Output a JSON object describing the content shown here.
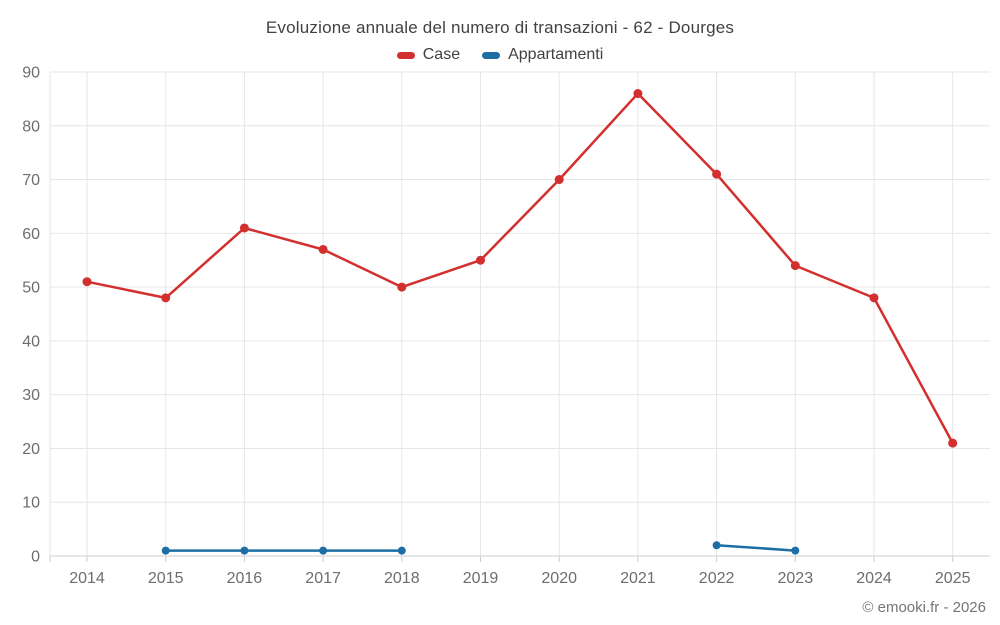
{
  "page": {
    "title": "Evoluzione annuale del numero di transazioni - 62 - Dourges",
    "copyright": "© emooki.fr - 2026"
  },
  "legend": {
    "items": [
      {
        "label": "Case",
        "color": "#d32f2f"
      },
      {
        "label": "Appartamenti",
        "color": "#1c6ea4"
      }
    ]
  },
  "chart_data": {
    "type": "line",
    "title": "Evoluzione annuale del numero di transazioni - 62 - Dourges",
    "categories": [
      "2014",
      "2015",
      "2016",
      "2017",
      "2018",
      "2019",
      "2020",
      "2021",
      "2022",
      "2023",
      "2024",
      "2025"
    ],
    "series": [
      {
        "name": "Case",
        "color": "#d32f2f",
        "values": [
          51,
          48,
          61,
          57,
          50,
          55,
          70,
          86,
          71,
          54,
          48,
          21
        ]
      },
      {
        "name": "Appartamenti",
        "color": "#1c6ea4",
        "values": [
          null,
          1,
          1,
          1,
          1,
          null,
          null,
          null,
          2,
          1,
          null,
          null
        ]
      }
    ],
    "ylim": [
      0,
      90
    ],
    "ytick_step": 10,
    "yticks": [
      0,
      10,
      20,
      30,
      40,
      50,
      60,
      70,
      80,
      90
    ],
    "grid": true,
    "legend_position": "top",
    "grid_color": "#e6e6e6",
    "axis_line_color": "#cccccc",
    "axis_text_color": "#6d6d6d"
  }
}
